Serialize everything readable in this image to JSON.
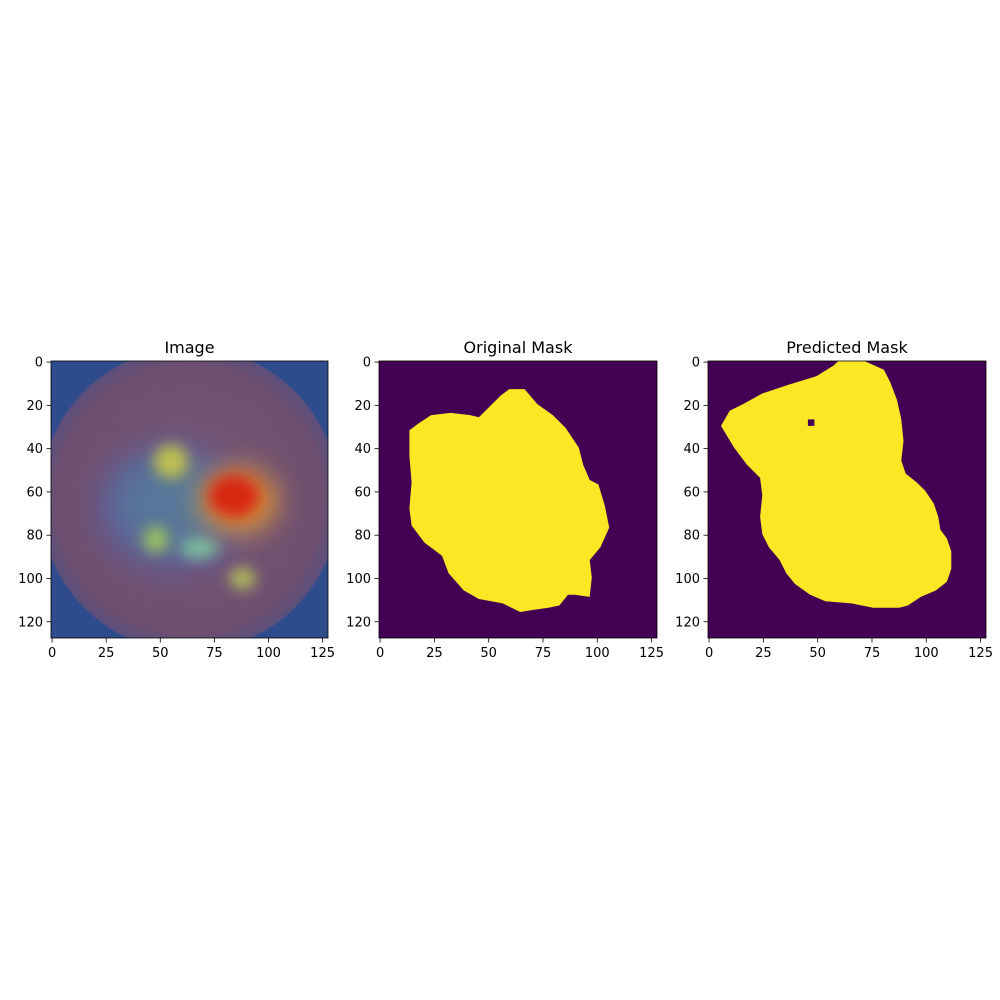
{
  "chart_data": [
    {
      "type": "heatmap",
      "title": "Image",
      "xlim": [
        0,
        127
      ],
      "ylim": [
        127,
        0
      ],
      "xticks": [
        "0",
        "25",
        "50",
        "75",
        "100",
        "125"
      ],
      "yticks": [
        "0",
        "20",
        "40",
        "60",
        "80",
        "100",
        "120"
      ],
      "xtick_values": [
        0,
        25,
        50,
        75,
        100,
        125
      ],
      "ytick_values": [
        0,
        20,
        40,
        60,
        80,
        100,
        120
      ],
      "background_color": "#6e5070",
      "hotspots": [
        {
          "label": "hotspot-red",
          "x": 84,
          "y": 62,
          "rx": 12,
          "ry": 10,
          "color": "#d81a0a"
        },
        {
          "label": "hotspot-orange",
          "x": 86,
          "y": 64,
          "rx": 18,
          "ry": 15,
          "color": "#f2a02a"
        },
        {
          "label": "hotspot-upper",
          "x": 55,
          "y": 46,
          "rx": 8,
          "ry": 8,
          "color": "#c8c84a"
        },
        {
          "label": "hotspot-left",
          "x": 48,
          "y": 82,
          "rx": 6,
          "ry": 6,
          "color": "#a0c85a"
        },
        {
          "label": "hotspot-mid",
          "x": 68,
          "y": 86,
          "rx": 9,
          "ry": 5,
          "color": "#7fc6a0"
        },
        {
          "label": "hotspot-lower",
          "x": 88,
          "y": 100,
          "rx": 6,
          "ry": 5,
          "color": "#b9c85a"
        }
      ]
    },
    {
      "type": "heatmap",
      "title": "Original Mask",
      "xlim": [
        0,
        127
      ],
      "ylim": [
        127,
        0
      ],
      "xticks": [
        "0",
        "25",
        "50",
        "75",
        "100",
        "125"
      ],
      "yticks": [
        "0",
        "20",
        "40",
        "60",
        "80",
        "100",
        "120"
      ],
      "xtick_values": [
        0,
        25,
        50,
        75,
        100,
        125
      ],
      "ytick_values": [
        0,
        20,
        40,
        60,
        80,
        100,
        120
      ],
      "background_color": "#440154",
      "mask_color": "#fde725",
      "mask_polygon": [
        [
          14,
          32
        ],
        [
          18,
          29
        ],
        [
          24,
          25
        ],
        [
          33,
          24
        ],
        [
          42,
          25
        ],
        [
          46,
          26
        ],
        [
          50,
          22
        ],
        [
          56,
          16
        ],
        [
          60,
          13
        ],
        [
          67,
          13
        ],
        [
          73,
          20
        ],
        [
          80,
          25
        ],
        [
          86,
          31
        ],
        [
          92,
          40
        ],
        [
          94,
          48
        ],
        [
          97,
          55
        ],
        [
          101,
          57
        ],
        [
          104,
          67
        ],
        [
          106,
          77
        ],
        [
          102,
          86
        ],
        [
          97,
          92
        ],
        [
          98,
          100
        ],
        [
          97,
          109
        ],
        [
          90,
          108
        ],
        [
          87,
          108
        ],
        [
          83,
          113
        ],
        [
          78,
          114
        ],
        [
          71,
          115
        ],
        [
          65,
          116
        ],
        [
          57,
          112
        ],
        [
          46,
          110
        ],
        [
          39,
          106
        ],
        [
          32,
          98
        ],
        [
          29,
          90
        ],
        [
          21,
          84
        ],
        [
          15,
          76
        ],
        [
          14,
          68
        ],
        [
          15,
          56
        ],
        [
          14,
          44
        ]
      ]
    },
    {
      "type": "heatmap",
      "title": "Predicted Mask",
      "xlim": [
        0,
        127
      ],
      "ylim": [
        127,
        0
      ],
      "xticks": [
        "0",
        "25",
        "50",
        "75",
        "100",
        "125"
      ],
      "yticks": [
        "0",
        "20",
        "40",
        "60",
        "80",
        "100",
        "120"
      ],
      "xtick_values": [
        0,
        25,
        50,
        75,
        100,
        125
      ],
      "ytick_values": [
        0,
        20,
        40,
        60,
        80,
        100,
        120
      ],
      "background_color": "#440154",
      "mask_color": "#fde725",
      "mask_polygon": [
        [
          6,
          30
        ],
        [
          10,
          23
        ],
        [
          16,
          20
        ],
        [
          25,
          15
        ],
        [
          37,
          11
        ],
        [
          50,
          7
        ],
        [
          58,
          2
        ],
        [
          60,
          0
        ],
        [
          72,
          0
        ],
        [
          81,
          4
        ],
        [
          84,
          10
        ],
        [
          87,
          18
        ],
        [
          89,
          27
        ],
        [
          90,
          37
        ],
        [
          89,
          46
        ],
        [
          91,
          52
        ],
        [
          96,
          56
        ],
        [
          100,
          60
        ],
        [
          104,
          66
        ],
        [
          106,
          72
        ],
        [
          107,
          78
        ],
        [
          110,
          82
        ],
        [
          112,
          88
        ],
        [
          112,
          96
        ],
        [
          110,
          102
        ],
        [
          105,
          106
        ],
        [
          98,
          109
        ],
        [
          92,
          113
        ],
        [
          88,
          114
        ],
        [
          76,
          114
        ],
        [
          66,
          112
        ],
        [
          54,
          111
        ],
        [
          47,
          108
        ],
        [
          40,
          103
        ],
        [
          36,
          98
        ],
        [
          33,
          92
        ],
        [
          28,
          86
        ],
        [
          25,
          80
        ],
        [
          24,
          72
        ],
        [
          25,
          62
        ],
        [
          24,
          54
        ],
        [
          18,
          48
        ],
        [
          12,
          40
        ]
      ],
      "hole_polygon": [
        [
          46,
          27
        ],
        [
          49,
          27
        ],
        [
          49,
          30
        ],
        [
          46,
          30
        ]
      ]
    }
  ]
}
